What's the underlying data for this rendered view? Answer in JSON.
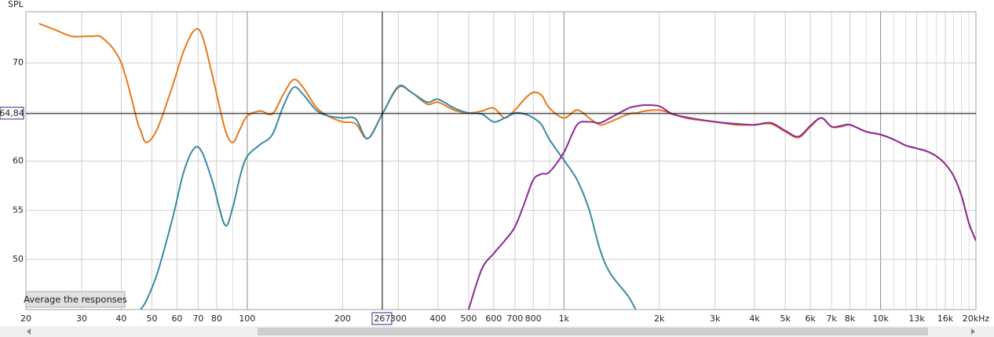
{
  "chart_data": {
    "type": "line",
    "xscale": "log",
    "y_label": "SPL",
    "x": [
      22,
      25,
      28,
      32,
      35,
      40,
      45,
      46,
      48,
      52,
      58,
      63,
      68,
      72,
      78,
      85,
      90,
      95,
      100,
      110,
      120,
      130,
      140,
      150,
      165,
      180,
      200,
      220,
      240,
      267,
      300,
      330,
      370,
      400,
      450,
      500,
      550,
      600,
      650,
      700,
      750,
      800,
      850,
      900,
      1000,
      1100,
      1200,
      1300,
      1400,
      1600,
      1700,
      1800,
      2000,
      2200,
      2500,
      3000,
      3500,
      4000,
      4500,
      5000,
      5500,
      6000,
      6500,
      7000,
      7500,
      8000,
      9000,
      10000,
      11000,
      12000,
      13000,
      14000,
      15000,
      16000,
      17000,
      18000,
      19000,
      20000
    ],
    "series": [
      {
        "color": "#e8791c",
        "values": [
          74.0,
          73.3,
          72.7,
          72.7,
          72.5,
          70.0,
          64.0,
          63.2,
          61.9,
          63.3,
          67.6,
          71.2,
          73.3,
          72.8,
          68.4,
          63.3,
          61.9,
          63.3,
          64.6,
          65.1,
          64.8,
          66.8,
          68.3,
          67.5,
          65.5,
          64.6,
          64.0,
          63.8,
          62.3,
          64.8,
          67.5,
          67.0,
          65.8,
          66.0,
          65.2,
          64.9,
          65.1,
          65.4,
          64.4,
          65.2,
          66.3,
          67.0,
          66.7,
          65.4,
          64.4,
          65.2,
          64.4,
          63.7,
          64.0,
          64.8,
          64.9,
          65.1,
          65.2,
          64.8,
          64.3,
          64.0,
          63.7,
          63.7,
          63.8,
          63.0,
          62.4,
          63.5,
          64.4,
          63.5,
          63.5,
          63.7,
          63.0,
          62.7,
          62.2,
          61.6,
          61.3,
          61.0,
          60.5,
          59.7,
          58.5,
          56.5,
          53.7,
          51.9
        ]
      },
      {
        "color": "#3a8aa6",
        "values": [
          null,
          null,
          null,
          null,
          null,
          null,
          null,
          44.9,
          45.8,
          48.6,
          54.1,
          58.9,
          61.3,
          60.9,
          57.7,
          53.5,
          55.3,
          58.5,
          60.5,
          61.7,
          62.7,
          65.6,
          67.5,
          66.8,
          65.2,
          64.6,
          64.4,
          64.3,
          62.3,
          64.8,
          67.6,
          67.0,
          66.0,
          66.3,
          65.4,
          64.9,
          64.8,
          64.0,
          64.4,
          64.9,
          64.8,
          64.4,
          63.7,
          62.2,
          60.1,
          58.1,
          55.1,
          51.0,
          48.6,
          46.2,
          44.6,
          null,
          null,
          null,
          null,
          null,
          null,
          null,
          null,
          null,
          null,
          null,
          null,
          null,
          null,
          null,
          null,
          null,
          null,
          null,
          null,
          null,
          null,
          null,
          null,
          null,
          null,
          null
        ]
      },
      {
        "color": "#8c2a96",
        "values": [
          null,
          null,
          null,
          null,
          null,
          null,
          null,
          null,
          null,
          null,
          null,
          null,
          null,
          null,
          null,
          null,
          null,
          null,
          null,
          null,
          null,
          null,
          null,
          null,
          null,
          null,
          null,
          null,
          null,
          null,
          null,
          null,
          null,
          null,
          null,
          44.9,
          49.0,
          50.6,
          51.9,
          53.3,
          55.7,
          58.1,
          58.7,
          58.9,
          60.9,
          63.7,
          64.0,
          63.9,
          64.4,
          65.4,
          65.6,
          65.7,
          65.6,
          64.8,
          64.4,
          64.0,
          63.8,
          63.7,
          63.9,
          63.1,
          62.5,
          63.6,
          64.4,
          63.5,
          63.6,
          63.7,
          63.0,
          62.7,
          62.2,
          61.6,
          61.3,
          61.0,
          60.5,
          59.7,
          58.5,
          56.5,
          53.7,
          51.9
        ]
      }
    ],
    "xlim": [
      20,
      20000
    ],
    "xticks": [
      20,
      30,
      40,
      50,
      60,
      70,
      80,
      100,
      200,
      300,
      400,
      500,
      600,
      700,
      800,
      {
        "value": 1000,
        "label": "1k"
      },
      {
        "value": 2000,
        "label": "2k"
      },
      {
        "value": 3000,
        "label": "3k"
      },
      {
        "value": 4000,
        "label": "4k"
      },
      {
        "value": 5000,
        "label": "5k"
      },
      {
        "value": 6000,
        "label": "6k"
      },
      {
        "value": 7000,
        "label": "7k"
      },
      {
        "value": 8000,
        "label": "8k"
      },
      {
        "value": 10000,
        "label": "10k"
      },
      {
        "value": 13000,
        "label": "13k",
        "color": "#9a9a9a"
      },
      {
        "value": 16000,
        "label": "16k",
        "color": "#9a9a9a"
      },
      {
        "value": 20000,
        "label": "20kHz"
      }
    ],
    "xgrid_minor": [
      90,
      900,
      9000,
      11000,
      12000,
      14000,
      15000,
      17000,
      18000,
      19000
    ],
    "ylim": [
      44.9,
      75.2
    ],
    "yticks": [
      50,
      55,
      60,
      70
    ],
    "ygrid_minor": [
      65
    ],
    "grid": true,
    "cursor": {
      "x": 267,
      "y": {
        "value": 64.84,
        "label": "64,84"
      }
    }
  },
  "button": {
    "label": "Average the responses"
  }
}
